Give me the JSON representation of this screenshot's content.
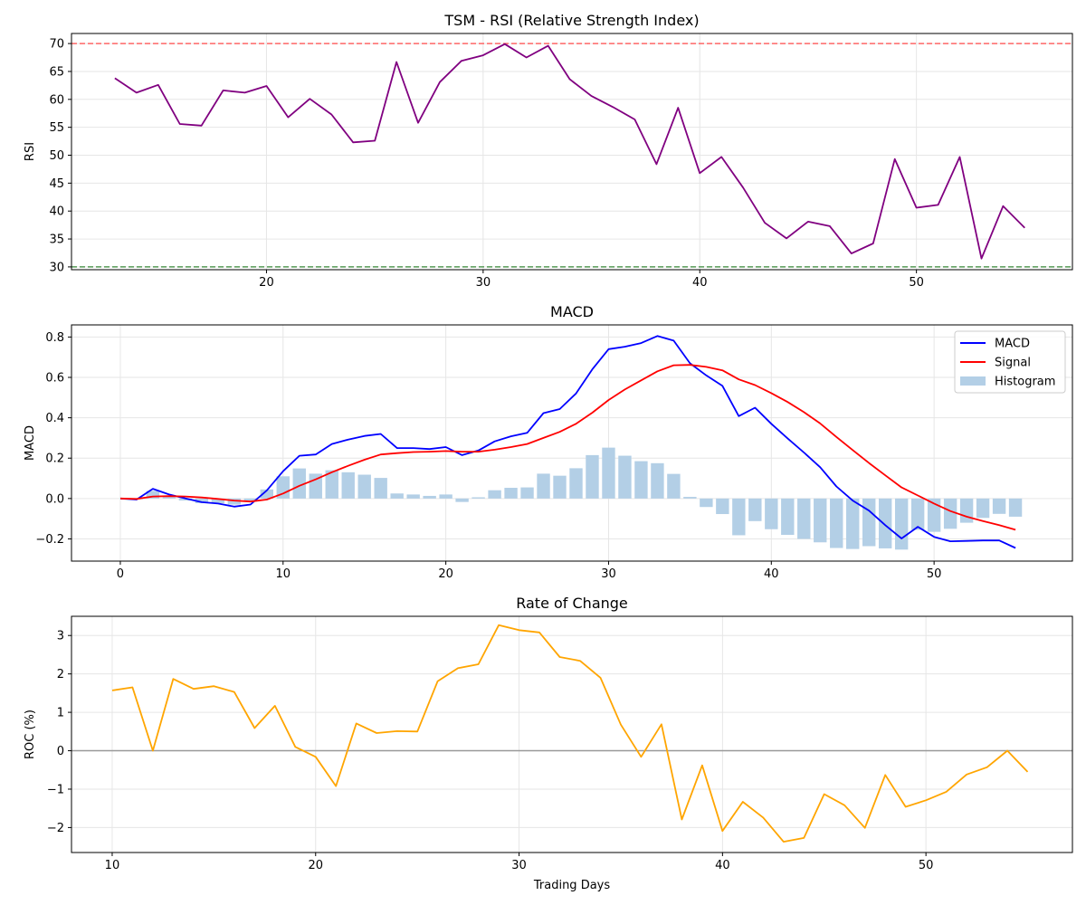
{
  "chart_data": [
    {
      "type": "line",
      "title": "TSM - RSI (Relative Strength Index)",
      "xlabel": "",
      "ylabel": "RSI",
      "xlim": [
        11,
        57.2
      ],
      "ylim": [
        29.5,
        71.8
      ],
      "xticks": [
        20,
        30,
        40,
        50
      ],
      "yticks": [
        30,
        35,
        40,
        45,
        50,
        55,
        60,
        65,
        70
      ],
      "grid": true,
      "reference_lines": [
        {
          "y": 70,
          "color": "#ff6666",
          "style": "dashed"
        },
        {
          "y": 30,
          "color": "#559955",
          "style": "dashed"
        }
      ],
      "series": [
        {
          "color": "#800080",
          "x": [
            13,
            14,
            15,
            16,
            17,
            18,
            19,
            20,
            21,
            22,
            23,
            24,
            25,
            26,
            27,
            28,
            29,
            30,
            31,
            32,
            33,
            34,
            35,
            36,
            37,
            38,
            39,
            40,
            41,
            42,
            43,
            44,
            45,
            46,
            47,
            48,
            49,
            50,
            51,
            52,
            53,
            54,
            55
          ],
          "y": [
            63.8,
            61.2,
            62.6,
            55.6,
            55.3,
            61.6,
            61.2,
            62.4,
            56.8,
            60.1,
            57.3,
            52.3,
            52.6,
            66.7,
            55.8,
            63.1,
            66.9,
            67.9,
            69.9,
            67.5,
            69.6,
            63.6,
            60.6,
            58.6,
            56.4,
            48.4,
            58.5,
            46.8,
            49.7,
            44.2,
            37.9,
            35.1,
            38.1,
            37.3,
            32.4,
            34.2,
            49.3,
            40.6,
            41.1,
            49.7,
            31.5,
            40.9,
            37.0
          ]
        }
      ]
    },
    {
      "type": "line",
      "title": "MACD",
      "xlabel": "",
      "ylabel": "MACD",
      "xlim": [
        -3,
        58.5
      ],
      "ylim": [
        -0.31,
        0.86
      ],
      "xticks": [
        0,
        10,
        20,
        30,
        40,
        50
      ],
      "yticks": [
        -0.2,
        0.0,
        0.2,
        0.4,
        0.6,
        0.8
      ],
      "ytick_labels": [
        "−0.2",
        "0.0",
        "0.2",
        "0.4",
        "0.6",
        "0.8"
      ],
      "grid": true,
      "legend": {
        "placement": "top-right",
        "entries": [
          "MACD",
          "Signal",
          "Histogram"
        ]
      },
      "x": [
        0,
        1,
        2,
        3,
        4,
        5,
        6,
        7,
        8,
        9,
        10,
        11,
        12,
        13,
        14,
        15,
        16,
        17,
        18,
        19,
        20,
        21,
        22,
        23,
        24,
        25,
        26,
        27,
        28,
        29,
        30,
        31,
        32,
        33,
        34,
        35,
        36,
        37,
        38,
        39,
        40,
        41,
        42,
        43,
        44,
        45,
        46,
        47,
        48,
        49,
        50,
        51,
        52,
        53,
        54,
        55
      ],
      "series": [
        {
          "name": "MACD",
          "type": "line",
          "color": "#0000ff",
          "values": [
            0.0,
            -0.005,
            0.048,
            0.02,
            0.0,
            -0.018,
            -0.025,
            -0.04,
            -0.03,
            0.04,
            0.135,
            0.212,
            0.218,
            0.27,
            0.292,
            0.31,
            0.32,
            0.25,
            0.25,
            0.245,
            0.255,
            0.215,
            0.238,
            0.283,
            0.308,
            0.325,
            0.423,
            0.443,
            0.52,
            0.64,
            0.74,
            0.752,
            0.77,
            0.805,
            0.782,
            0.67,
            0.61,
            0.558,
            0.408,
            0.45,
            0.37,
            0.298,
            0.228,
            0.155,
            0.06,
            -0.01,
            -0.06,
            -0.132,
            -0.198,
            -0.14,
            -0.19,
            -0.212,
            -0.21,
            -0.208,
            -0.208,
            -0.245
          ]
        },
        {
          "name": "Signal",
          "type": "line",
          "color": "#ff0000",
          "values": [
            0.0,
            -0.002,
            0.01,
            0.012,
            0.01,
            0.005,
            -0.002,
            -0.01,
            -0.015,
            -0.005,
            0.025,
            0.063,
            0.095,
            0.13,
            0.162,
            0.192,
            0.218,
            0.225,
            0.23,
            0.232,
            0.235,
            0.232,
            0.232,
            0.242,
            0.255,
            0.27,
            0.3,
            0.33,
            0.37,
            0.425,
            0.488,
            0.54,
            0.585,
            0.63,
            0.66,
            0.662,
            0.652,
            0.635,
            0.59,
            0.562,
            0.522,
            0.478,
            0.428,
            0.372,
            0.305,
            0.24,
            0.176,
            0.115,
            0.055,
            0.015,
            -0.025,
            -0.062,
            -0.09,
            -0.112,
            -0.132,
            -0.155
          ]
        },
        {
          "name": "Histogram",
          "type": "bar",
          "color": "#b3cfe6",
          "values": [
            0.0,
            -0.003,
            0.038,
            0.008,
            -0.01,
            -0.023,
            -0.023,
            -0.03,
            -0.015,
            0.045,
            0.11,
            0.149,
            0.123,
            0.14,
            0.13,
            0.118,
            0.102,
            0.025,
            0.02,
            0.013,
            0.02,
            -0.017,
            0.006,
            0.041,
            0.053,
            0.055,
            0.123,
            0.113,
            0.15,
            0.215,
            0.252,
            0.212,
            0.185,
            0.175,
            0.122,
            0.008,
            -0.042,
            -0.077,
            -0.182,
            -0.112,
            -0.152,
            -0.18,
            -0.2,
            -0.217,
            -0.245,
            -0.25,
            -0.236,
            -0.247,
            -0.253,
            -0.155,
            -0.165,
            -0.15,
            -0.12,
            -0.096,
            -0.076,
            -0.09
          ]
        }
      ]
    },
    {
      "type": "line",
      "title": "Rate of Change",
      "xlabel": "Trading Days",
      "ylabel": "ROC (%)",
      "xlim": [
        8.0,
        57.2
      ],
      "ylim": [
        -2.65,
        3.5
      ],
      "xticks": [
        10,
        20,
        30,
        40,
        50
      ],
      "yticks": [
        -2,
        -1,
        0,
        1,
        2,
        3
      ],
      "ytick_labels": [
        "−2",
        "−1",
        "0",
        "1",
        "2",
        "3"
      ],
      "grid": true,
      "reference_lines": [
        {
          "y": 0,
          "color": "#999999",
          "style": "solid"
        }
      ],
      "series": [
        {
          "color": "#ffa500",
          "x": [
            10,
            11,
            12,
            13,
            14,
            15,
            16,
            17,
            18,
            19,
            20,
            21,
            22,
            23,
            24,
            25,
            26,
            27,
            28,
            29,
            30,
            31,
            32,
            33,
            34,
            35,
            36,
            37,
            38,
            39,
            40,
            41,
            42,
            43,
            44,
            45,
            46,
            47,
            48,
            49,
            50,
            51,
            52,
            53,
            54,
            55
          ],
          "y": [
            1.57,
            1.65,
            0.0,
            1.87,
            1.61,
            1.68,
            1.53,
            0.59,
            1.17,
            0.1,
            -0.16,
            -0.92,
            0.71,
            0.46,
            0.51,
            0.5,
            1.81,
            2.15,
            2.25,
            3.27,
            3.14,
            3.08,
            2.44,
            2.34,
            1.9,
            0.68,
            -0.16,
            0.69,
            -1.79,
            -0.38,
            -2.09,
            -1.33,
            -1.74,
            -2.37,
            -2.27,
            -1.13,
            -1.42,
            -2.01,
            -0.63,
            -1.46,
            -1.29,
            -1.07,
            -0.62,
            -0.43,
            0.0,
            -0.55
          ]
        }
      ]
    }
  ]
}
